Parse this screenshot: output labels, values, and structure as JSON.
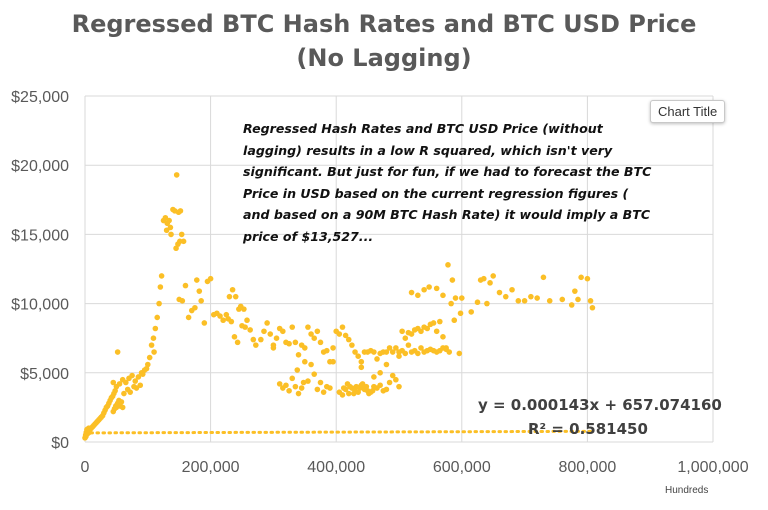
{
  "chart_data": {
    "type": "scatter",
    "title_line1": "Regressed BTC Hash Rates and BTC USD Price",
    "title_line2": "(No Lagging)",
    "xlabel": "Hundreds",
    "ylabel": "",
    "xlim": [
      0,
      1000000
    ],
    "ylim": [
      0,
      25000
    ],
    "x_ticks": [
      "0",
      "200,000",
      "400,000",
      "600,000",
      "800,000",
      "1,000,000"
    ],
    "y_ticks": [
      "$0",
      "$5,000",
      "$10,000",
      "$15,000",
      "$20,000",
      "$25,000"
    ],
    "grid": true,
    "point_color": "#FBBF26",
    "annotation": "Regressed Hash Rates and BTC USD Price (without lagging) results in a low R squared, which isn't very significant.  But just for fun, if we had to forecast the BTC Price in USD based on the current regression figures ( and based on a 90M BTC Hash Rate) it would imply a BTC price of $13,527...",
    "trendline": {
      "equation": "y = 0.000143x + 657.074160",
      "r_squared": "R² = 0.581450",
      "slope": 0.000143,
      "intercept": 657.07416,
      "x_range": [
        0,
        810000
      ]
    },
    "overlay_label": "Chart Title",
    "series": [
      {
        "points": [
          [
            0,
            300
          ],
          [
            1000,
            500
          ],
          [
            2000,
            700
          ],
          [
            3000,
            900
          ],
          [
            1500,
            400
          ],
          [
            4000,
            600
          ],
          [
            5000,
            800
          ],
          [
            6000,
            1000
          ],
          [
            7000,
            700
          ],
          [
            8000,
            900
          ],
          [
            10000,
            1000
          ],
          [
            12000,
            1100
          ],
          [
            14000,
            1200
          ],
          [
            16000,
            1300
          ],
          [
            18000,
            1400
          ],
          [
            20000,
            1500
          ],
          [
            22000,
            1600
          ],
          [
            24000,
            1700
          ],
          [
            26000,
            1800
          ],
          [
            28000,
            1900
          ],
          [
            30000,
            2100
          ],
          [
            32000,
            2300
          ],
          [
            34000,
            2500
          ],
          [
            36000,
            2600
          ],
          [
            38000,
            2800
          ],
          [
            40000,
            3000
          ],
          [
            42000,
            3200
          ],
          [
            44000,
            3300
          ],
          [
            46000,
            3500
          ],
          [
            48000,
            3700
          ],
          [
            50000,
            2500
          ],
          [
            52000,
            2800
          ],
          [
            54000,
            3000
          ],
          [
            56000,
            2600
          ],
          [
            58000,
            2900
          ],
          [
            60000,
            2500
          ],
          [
            45000,
            2200
          ],
          [
            47000,
            2400
          ],
          [
            49000,
            2600
          ],
          [
            51000,
            2700
          ],
          [
            50000,
            4000
          ],
          [
            55000,
            4200
          ],
          [
            60000,
            4500
          ],
          [
            65000,
            4300
          ],
          [
            70000,
            4600
          ],
          [
            75000,
            4800
          ],
          [
            80000,
            4400
          ],
          [
            85000,
            4700
          ],
          [
            90000,
            5000
          ],
          [
            95000,
            5200
          ],
          [
            45000,
            4300
          ],
          [
            52000,
            6500
          ],
          [
            62000,
            3500
          ],
          [
            68000,
            3800
          ],
          [
            72000,
            3600
          ],
          [
            78000,
            4000
          ],
          [
            82000,
            3900
          ],
          [
            88000,
            4100
          ],
          [
            92000,
            4900
          ],
          [
            98000,
            5300
          ],
          [
            100000,
            5600
          ],
          [
            103000,
            6100
          ],
          [
            106000,
            7000
          ],
          [
            109000,
            7500
          ],
          [
            112000,
            8200
          ],
          [
            115000,
            9000
          ],
          [
            118000,
            10000
          ],
          [
            120000,
            11200
          ],
          [
            122000,
            12000
          ],
          [
            110000,
            6500
          ],
          [
            125000,
            16000
          ],
          [
            128000,
            16200
          ],
          [
            131000,
            15800
          ],
          [
            134000,
            16000
          ],
          [
            137000,
            15000
          ],
          [
            140000,
            16800
          ],
          [
            143000,
            16700
          ],
          [
            146000,
            19300
          ],
          [
            149000,
            16600
          ],
          [
            152000,
            16700
          ],
          [
            145000,
            14000
          ],
          [
            148000,
            14300
          ],
          [
            151000,
            14500
          ],
          [
            154000,
            15000
          ],
          [
            157000,
            14500
          ],
          [
            150000,
            10300
          ],
          [
            155000,
            10200
          ],
          [
            130000,
            15300
          ],
          [
            136000,
            15500
          ],
          [
            160000,
            11300
          ],
          [
            165000,
            9000
          ],
          [
            170000,
            9500
          ],
          [
            175000,
            9700
          ],
          [
            178000,
            11700
          ],
          [
            182000,
            10900
          ],
          [
            185000,
            10200
          ],
          [
            190000,
            8600
          ],
          [
            195000,
            11600
          ],
          [
            200000,
            11800
          ],
          [
            205000,
            9200
          ],
          [
            210000,
            9300
          ],
          [
            215000,
            9100
          ],
          [
            220000,
            8800
          ],
          [
            225000,
            9200
          ],
          [
            230000,
            10500
          ],
          [
            235000,
            11000
          ],
          [
            240000,
            10500
          ],
          [
            245000,
            9600
          ],
          [
            250000,
            8400
          ],
          [
            255000,
            8300
          ],
          [
            228000,
            8900
          ],
          [
            233000,
            8700
          ],
          [
            238000,
            7600
          ],
          [
            243000,
            7200
          ],
          [
            248000,
            9800
          ],
          [
            253000,
            9600
          ],
          [
            258000,
            8800
          ],
          [
            263000,
            8100
          ],
          [
            268000,
            7400
          ],
          [
            272000,
            7000
          ],
          [
            280000,
            7400
          ],
          [
            285000,
            8000
          ],
          [
            290000,
            8600
          ],
          [
            295000,
            7800
          ],
          [
            300000,
            7000
          ],
          [
            305000,
            7500
          ],
          [
            310000,
            8200
          ],
          [
            315000,
            8000
          ],
          [
            320000,
            7200
          ],
          [
            325000,
            7100
          ],
          [
            330000,
            8300
          ],
          [
            335000,
            7200
          ],
          [
            340000,
            6300
          ],
          [
            345000,
            7000
          ],
          [
            350000,
            6800
          ],
          [
            355000,
            8300
          ],
          [
            360000,
            7800
          ],
          [
            365000,
            7500
          ],
          [
            370000,
            8000
          ],
          [
            375000,
            7200
          ],
          [
            380000,
            6500
          ],
          [
            385000,
            6600
          ],
          [
            390000,
            5800
          ],
          [
            395000,
            6800
          ],
          [
            400000,
            8000
          ],
          [
            405000,
            7800
          ],
          [
            410000,
            8300
          ],
          [
            415000,
            7700
          ],
          [
            420000,
            7400
          ],
          [
            425000,
            7000
          ],
          [
            310000,
            4200
          ],
          [
            315000,
            3900
          ],
          [
            320000,
            4100
          ],
          [
            325000,
            3700
          ],
          [
            330000,
            4600
          ],
          [
            335000,
            4000
          ],
          [
            340000,
            3500
          ],
          [
            345000,
            3900
          ],
          [
            350000,
            5800
          ],
          [
            355000,
            4400
          ],
          [
            360000,
            5600
          ],
          [
            365000,
            4900
          ],
          [
            370000,
            3800
          ],
          [
            375000,
            4300
          ],
          [
            380000,
            3600
          ],
          [
            385000,
            4000
          ],
          [
            390000,
            3900
          ],
          [
            395000,
            5800
          ],
          [
            338000,
            5200
          ],
          [
            348000,
            4300
          ],
          [
            405000,
            3600
          ],
          [
            410000,
            3400
          ],
          [
            415000,
            3800
          ],
          [
            420000,
            3500
          ],
          [
            425000,
            3900
          ],
          [
            430000,
            3700
          ],
          [
            435000,
            3600
          ],
          [
            440000,
            4100
          ],
          [
            445000,
            3800
          ],
          [
            450000,
            3700
          ],
          [
            455000,
            3600
          ],
          [
            460000,
            4000
          ],
          [
            465000,
            3900
          ],
          [
            470000,
            4100
          ],
          [
            475000,
            3700
          ],
          [
            480000,
            3800
          ],
          [
            485000,
            4300
          ],
          [
            490000,
            4800
          ],
          [
            495000,
            4500
          ],
          [
            500000,
            4000
          ],
          [
            412000,
            3900
          ],
          [
            418000,
            4200
          ],
          [
            422000,
            4000
          ],
          [
            428000,
            3500
          ],
          [
            432000,
            4000
          ],
          [
            438000,
            3900
          ],
          [
            442000,
            4200
          ],
          [
            448000,
            4000
          ],
          [
            452000,
            3500
          ],
          [
            458000,
            3700
          ],
          [
            430000,
            6500
          ],
          [
            435000,
            6200
          ],
          [
            440000,
            5800
          ],
          [
            445000,
            6500
          ],
          [
            450000,
            6500
          ],
          [
            455000,
            6600
          ],
          [
            460000,
            6500
          ],
          [
            465000,
            6000
          ],
          [
            470000,
            6400
          ],
          [
            475000,
            6500
          ],
          [
            480000,
            6500
          ],
          [
            485000,
            6800
          ],
          [
            490000,
            6500
          ],
          [
            495000,
            6800
          ],
          [
            500000,
            6500
          ],
          [
            505000,
            6600
          ],
          [
            510000,
            6400
          ],
          [
            515000,
            7000
          ],
          [
            520000,
            6500
          ],
          [
            525000,
            6600
          ],
          [
            530000,
            6400
          ],
          [
            535000,
            6800
          ],
          [
            540000,
            6500
          ],
          [
            545000,
            6600
          ],
          [
            550000,
            6700
          ],
          [
            555000,
            6600
          ],
          [
            560000,
            6500
          ],
          [
            565000,
            6600
          ],
          [
            570000,
            6800
          ],
          [
            575000,
            6700
          ],
          [
            505000,
            8000
          ],
          [
            510000,
            7500
          ],
          [
            515000,
            7900
          ],
          [
            520000,
            7800
          ],
          [
            525000,
            8100
          ],
          [
            530000,
            8200
          ],
          [
            535000,
            8000
          ],
          [
            540000,
            8300
          ],
          [
            545000,
            8200
          ],
          [
            550000,
            8500
          ],
          [
            555000,
            8600
          ],
          [
            560000,
            8000
          ],
          [
            565000,
            8700
          ],
          [
            570000,
            7600
          ],
          [
            575000,
            6800
          ],
          [
            580000,
            6500
          ],
          [
            520000,
            10800
          ],
          [
            530000,
            10600
          ],
          [
            540000,
            11000
          ],
          [
            548000,
            11200
          ],
          [
            560000,
            11100
          ],
          [
            570000,
            10600
          ],
          [
            578000,
            12800
          ],
          [
            585000,
            11700
          ],
          [
            590000,
            10400
          ],
          [
            600000,
            10400
          ],
          [
            583000,
            10000
          ],
          [
            588000,
            8800
          ],
          [
            596000,
            6400
          ],
          [
            598000,
            9300
          ],
          [
            615000,
            9400
          ],
          [
            625000,
            10100
          ],
          [
            630000,
            11700
          ],
          [
            635000,
            11800
          ],
          [
            640000,
            10000
          ],
          [
            645000,
            11500
          ],
          [
            650000,
            12000
          ],
          [
            660000,
            10800
          ],
          [
            670000,
            10500
          ],
          [
            680000,
            11000
          ],
          [
            690000,
            10200
          ],
          [
            700000,
            10200
          ],
          [
            710000,
            10500
          ],
          [
            720000,
            10400
          ],
          [
            730000,
            11900
          ],
          [
            740000,
            10200
          ],
          [
            780000,
            10900
          ],
          [
            785000,
            10300
          ],
          [
            790000,
            11900
          ],
          [
            800000,
            11800
          ],
          [
            805000,
            10200
          ],
          [
            808000,
            9700
          ],
          [
            775000,
            9900
          ],
          [
            760000,
            10300
          ],
          [
            470000,
            5000
          ],
          [
            480000,
            5600
          ],
          [
            500000,
            6200
          ],
          [
            460000,
            4700
          ],
          [
            440000,
            5400
          ],
          [
            300000,
            6800
          ]
        ]
      }
    ]
  }
}
